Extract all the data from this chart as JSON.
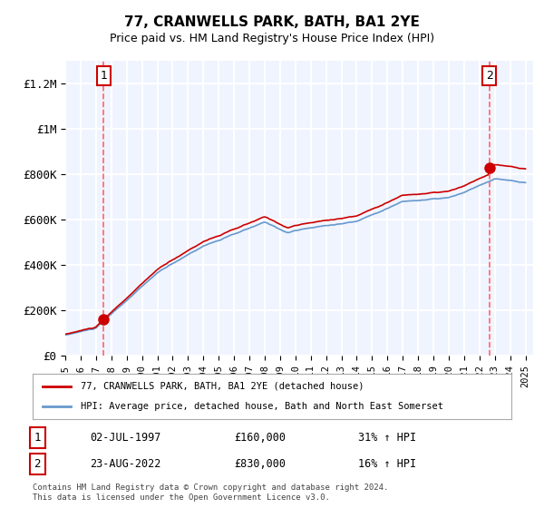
{
  "title": "77, CRANWELLS PARK, BATH, BA1 2YE",
  "subtitle": "Price paid vs. HM Land Registry's House Price Index (HPI)",
  "legend_line1": "77, CRANWELLS PARK, BATH, BA1 2YE (detached house)",
  "legend_line2": "HPI: Average price, detached house, Bath and North East Somerset",
  "table_rows": [
    {
      "num": "1",
      "date": "02-JUL-1997",
      "price": "£160,000",
      "hpi": "31% ↑ HPI"
    },
    {
      "num": "2",
      "date": "23-AUG-2022",
      "price": "£830,000",
      "hpi": "16% ↑ HPI"
    }
  ],
  "footnote": "Contains HM Land Registry data © Crown copyright and database right 2024.\nThis data is licensed under the Open Government Licence v3.0.",
  "ylim": [
    0,
    1300000
  ],
  "yticks": [
    0,
    200000,
    400000,
    600000,
    800000,
    1000000,
    1200000
  ],
  "ytick_labels": [
    "£0",
    "£200K",
    "£400K",
    "£600K",
    "£800K",
    "£1M",
    "£1.2M"
  ],
  "sale1_year": 1997.5,
  "sale1_price": 160000,
  "sale2_year": 2022.65,
  "sale2_price": 830000,
  "red_line_color": "#cc0000",
  "blue_line_color": "#6699cc",
  "dashed_line_color": "#ff6666",
  "background_color": "#f0f4ff",
  "plot_bg_color": "#f0f4ff",
  "grid_color": "#ffffff",
  "box_color": "#ddddee"
}
